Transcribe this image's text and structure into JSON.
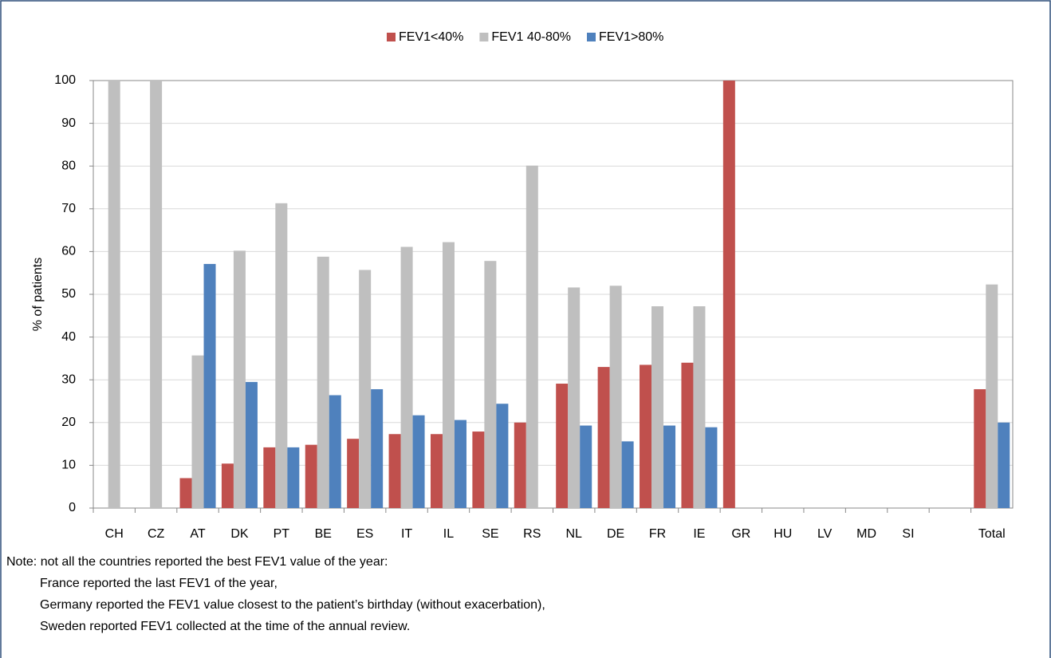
{
  "chart_data": {
    "type": "bar",
    "y_label": "% of patients",
    "categories": [
      "CH",
      "CZ",
      "AT",
      "DK",
      "PT",
      "BE",
      "ES",
      "IT",
      "IL",
      "SE",
      "RS",
      "NL",
      "DE",
      "FR",
      "IE",
      "GR",
      "HU",
      "LV",
      "MD",
      "SI",
      null,
      "Total"
    ],
    "series": [
      {
        "name": "FEV1<40%",
        "color": "#c0504d",
        "values": [
          0,
          0,
          7,
          10.4,
          14.2,
          14.8,
          16.2,
          17.3,
          17.3,
          17.9,
          20,
          29.1,
          33,
          33.5,
          34,
          100,
          0,
          0,
          0,
          0,
          null,
          27.8
        ]
      },
      {
        "name": "FEV1 40-80%",
        "color": "#bfbfbf",
        "values": [
          100,
          100,
          35.7,
          60.2,
          71.3,
          58.8,
          55.7,
          61.1,
          62.2,
          57.8,
          80.1,
          51.6,
          52,
          47.2,
          47.2,
          0,
          0,
          0,
          0,
          0,
          null,
          52.3
        ]
      },
      {
        "name": "FEV1>80%",
        "color": "#4f81bd",
        "values": [
          0,
          0,
          57.1,
          29.5,
          14.2,
          26.4,
          27.8,
          21.7,
          20.6,
          24.4,
          0,
          19.3,
          15.6,
          19.3,
          18.9,
          0,
          0,
          0,
          0,
          0,
          null,
          20
        ]
      }
    ],
    "ylim": [
      0,
      100
    ],
    "yticks": [
      0,
      10,
      20,
      30,
      40,
      50,
      60,
      70,
      80,
      90,
      100
    ],
    "grid": true,
    "legend": "top",
    "notes": [
      "Note: not all the countries reported the best FEV1 value of the year:",
      "France reported the last FEV1 of the year,",
      "Germany reported the FEV1 value closest to the patient’s birthday (without exacerbation),",
      "Sweden reported FEV1 collected at the time of the annual review."
    ]
  }
}
